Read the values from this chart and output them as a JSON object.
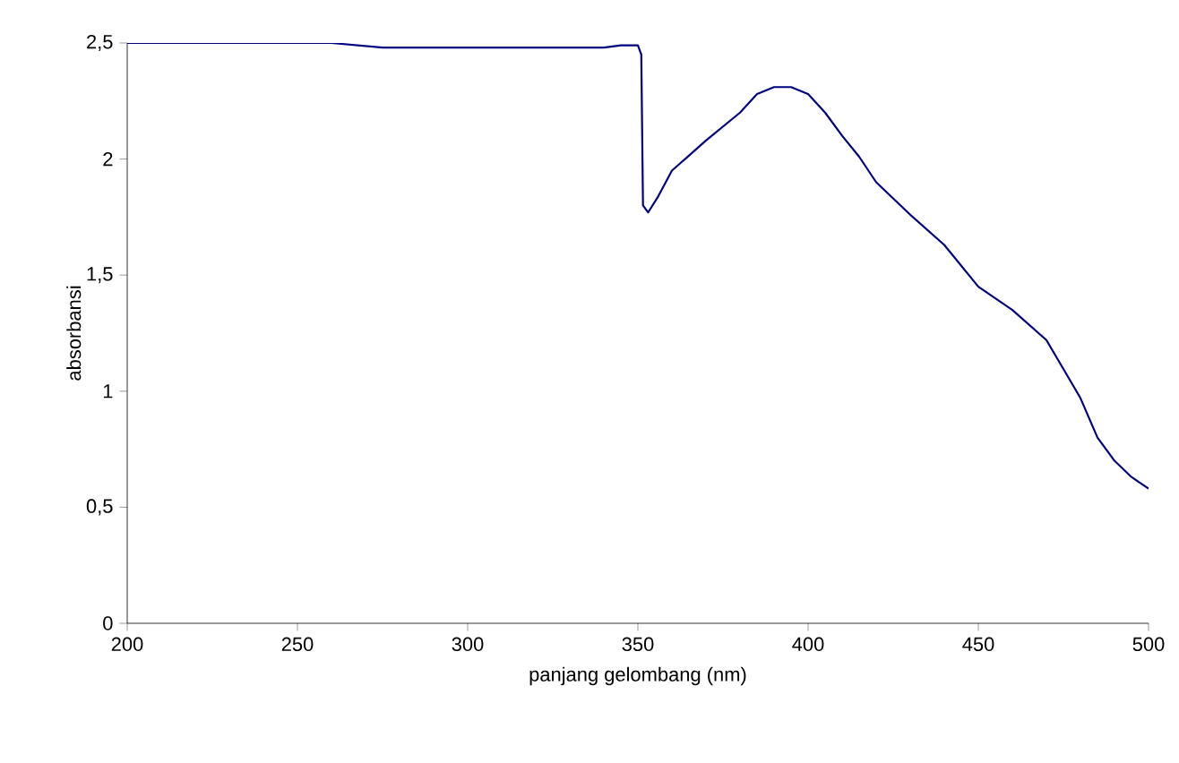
{
  "chart_data": {
    "type": "line",
    "xlabel": "panjang gelombang (nm)",
    "ylabel": "absorbansi",
    "x": [
      200,
      230,
      260,
      275,
      300,
      340,
      345,
      350,
      351,
      351.5,
      353,
      356,
      360,
      370,
      380,
      385,
      390,
      395,
      400,
      405,
      410,
      415,
      420,
      430,
      440,
      450,
      460,
      470,
      480,
      485,
      490,
      495,
      500
    ],
    "series": [
      {
        "color": "#000080",
        "values": [
          2.5,
          2.5,
          2.5,
          2.48,
          2.48,
          2.48,
          2.49,
          2.49,
          2.45,
          1.8,
          1.77,
          1.84,
          1.95,
          2.08,
          2.2,
          2.28,
          2.31,
          2.31,
          2.28,
          2.2,
          2.1,
          2.01,
          1.9,
          1.76,
          1.63,
          1.45,
          1.35,
          1.22,
          0.97,
          0.8,
          0.7,
          0.63,
          0.58
        ]
      }
    ],
    "xlim": [
      200,
      500
    ],
    "ylim": [
      0,
      2.5
    ],
    "xticks": [
      200,
      250,
      300,
      350,
      400,
      450,
      500
    ],
    "yticks": [
      {
        "value": 0,
        "label": "0"
      },
      {
        "value": 0.5,
        "label": "0,5"
      },
      {
        "value": 1,
        "label": "1"
      },
      {
        "value": 1.5,
        "label": "1,5"
      },
      {
        "value": 2,
        "label": "2"
      },
      {
        "value": 2.5,
        "label": "2,5"
      }
    ],
    "marker": "none",
    "line_style": "solid"
  }
}
